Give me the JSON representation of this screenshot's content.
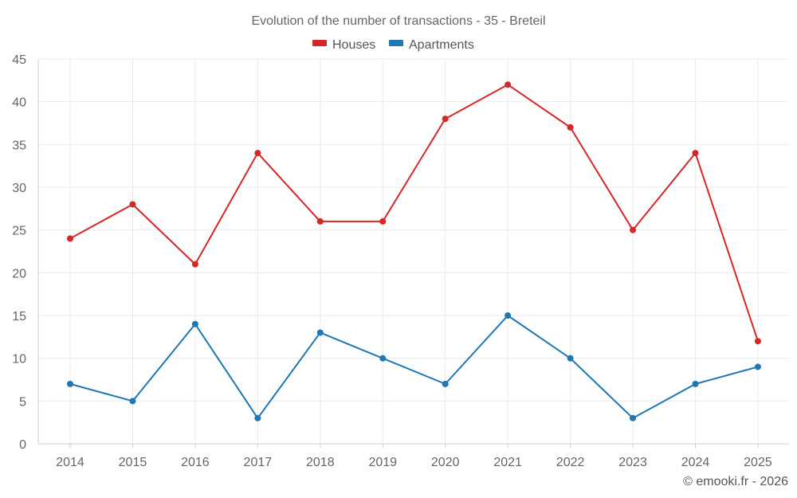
{
  "chart_data": {
    "type": "line",
    "title": "Evolution of the number of transactions - 35 - Breteil",
    "categories": [
      "2014",
      "2015",
      "2016",
      "2017",
      "2018",
      "2019",
      "2020",
      "2021",
      "2022",
      "2023",
      "2024",
      "2025"
    ],
    "series": [
      {
        "name": "Houses",
        "color": "#d62728",
        "values": [
          24,
          28,
          21,
          34,
          26,
          26,
          38,
          42,
          37,
          25,
          34,
          12
        ]
      },
      {
        "name": "Apartments",
        "color": "#1f77b4",
        "values": [
          7,
          5,
          14,
          3,
          13,
          10,
          7,
          15,
          10,
          3,
          7,
          9
        ]
      }
    ],
    "xlabel": "",
    "ylabel": "",
    "ylim": [
      0,
      45
    ],
    "yticks": [
      0,
      5,
      10,
      15,
      20,
      25,
      30,
      35,
      40,
      45
    ],
    "grid": true,
    "legend": "top-center"
  },
  "credit": "© emooki.fr - 2026"
}
